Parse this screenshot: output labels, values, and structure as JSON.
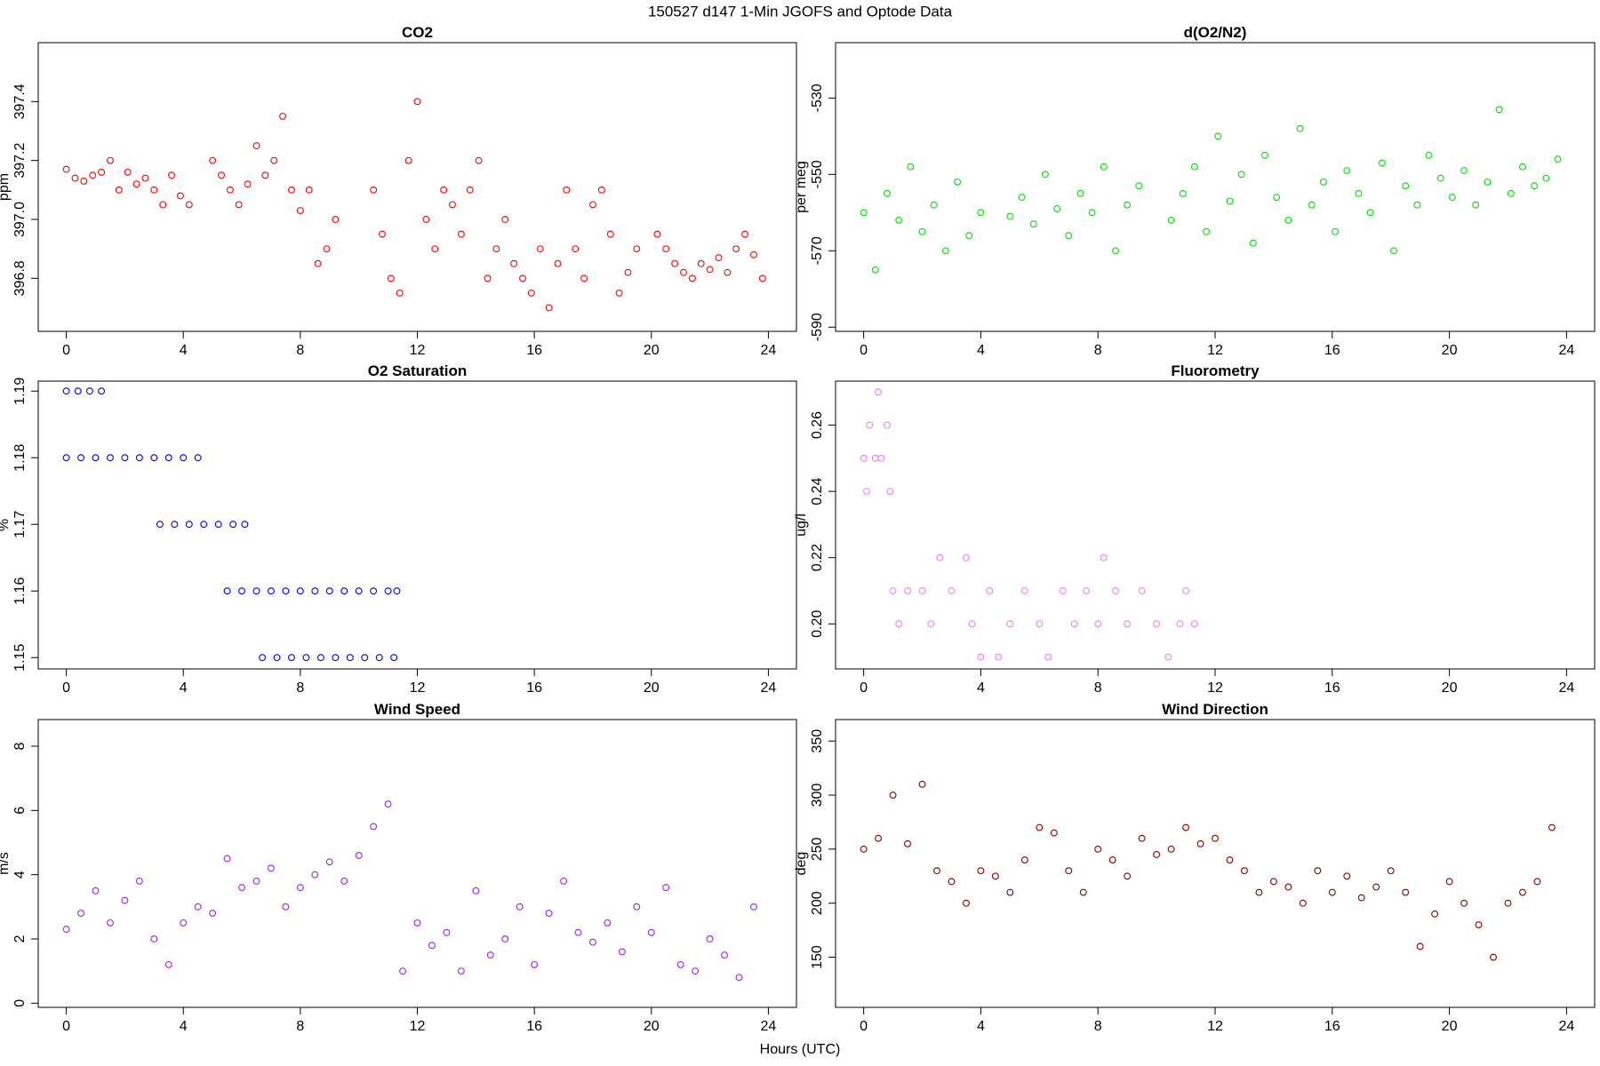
{
  "title": "150527   d147   1-Min  JGOFS and Optode Data",
  "xlabel": "Hours (UTC)",
  "chart_data": [
    {
      "type": "scatter",
      "title": "CO2",
      "ylabel": "ppm",
      "color": "#ff0000",
      "xlim": [
        -0.96,
        24.96
      ],
      "xticks": [
        0,
        4,
        8,
        12,
        16,
        20,
        24
      ],
      "ylim": [
        396.62,
        397.6
      ],
      "yticks": [
        396.8,
        {
          "value": 397.0,
          "label": "397.0"
        },
        397.2,
        397.4
      ],
      "x": [
        0,
        0.3,
        0.6,
        0.9,
        1.2,
        1.5,
        1.8,
        2.1,
        2.4,
        2.7,
        3.0,
        3.3,
        3.6,
        3.9,
        4.2,
        5.0,
        5.3,
        5.6,
        5.9,
        6.2,
        6.5,
        6.8,
        7.1,
        7.4,
        7.7,
        8.0,
        8.3,
        8.6,
        8.9,
        9.2,
        10.5,
        10.8,
        11.1,
        11.4,
        11.7,
        12.0,
        12.3,
        12.6,
        12.9,
        13.2,
        13.5,
        13.8,
        14.1,
        14.4,
        14.7,
        15.0,
        15.3,
        15.6,
        15.9,
        16.2,
        16.5,
        16.8,
        17.1,
        17.4,
        17.7,
        18.0,
        18.3,
        18.6,
        18.9,
        19.2,
        19.5,
        20.2,
        20.5,
        20.8,
        21.1,
        21.4,
        21.7,
        22.0,
        22.3,
        22.6,
        22.9,
        23.2,
        23.5,
        23.8
      ],
      "values": [
        397.17,
        397.14,
        397.13,
        397.15,
        397.16,
        397.2,
        397.1,
        397.16,
        397.12,
        397.14,
        397.1,
        397.05,
        397.15,
        397.08,
        397.05,
        397.2,
        397.15,
        397.1,
        397.05,
        397.12,
        397.25,
        397.15,
        397.2,
        397.35,
        397.1,
        397.03,
        397.1,
        396.85,
        396.9,
        397.0,
        397.1,
        396.95,
        396.8,
        396.75,
        397.2,
        397.4,
        397.0,
        396.9,
        397.1,
        397.05,
        396.95,
        397.1,
        397.2,
        396.8,
        396.9,
        397.0,
        396.85,
        396.8,
        396.75,
        396.9,
        396.7,
        396.85,
        397.1,
        396.9,
        396.8,
        397.05,
        397.1,
        396.95,
        396.75,
        396.82,
        396.9,
        396.95,
        396.9,
        396.85,
        396.82,
        396.8,
        396.85,
        396.83,
        396.87,
        396.82,
        396.9,
        396.95,
        396.88,
        396.8
      ]
    },
    {
      "type": "scatter",
      "title": "d(O2/N2)",
      "ylabel": "per meg",
      "color": "#00e000",
      "xlim": [
        -0.96,
        24.96
      ],
      "xticks": [
        0,
        4,
        8,
        12,
        16,
        20,
        24
      ],
      "ylim": [
        -591.1,
        -515.5
      ],
      "yticks": [
        -590,
        -570,
        -550,
        -530
      ],
      "x": [
        0,
        0.4,
        0.8,
        1.2,
        1.6,
        2.0,
        2.4,
        2.8,
        3.2,
        3.6,
        4.0,
        5.0,
        5.4,
        5.8,
        6.2,
        6.6,
        7.0,
        7.4,
        7.8,
        8.2,
        8.6,
        9.0,
        9.4,
        10.5,
        10.9,
        11.3,
        11.7,
        12.1,
        12.5,
        12.9,
        13.3,
        13.7,
        14.1,
        14.5,
        14.9,
        15.3,
        15.7,
        16.1,
        16.5,
        16.9,
        17.3,
        17.7,
        18.1,
        18.5,
        18.9,
        19.3,
        19.7,
        20.1,
        20.5,
        20.9,
        21.3,
        21.7,
        22.1,
        22.5,
        22.9,
        23.3,
        23.7
      ],
      "values": [
        -560,
        -575,
        -555,
        -562,
        -548,
        -565,
        -558,
        -570,
        -552,
        -566,
        -560,
        -561,
        -556,
        -563,
        -550,
        -559,
        -566,
        -555,
        -560,
        -548,
        -570,
        -558,
        -553,
        -562,
        -555,
        -548,
        -565,
        -540,
        -557,
        -550,
        -568,
        -545,
        -556,
        -562,
        -538,
        -558,
        -552,
        -565,
        -549,
        -555,
        -560,
        -547,
        -570,
        -553,
        -558,
        -545,
        -551,
        -556,
        -549,
        -558,
        -552,
        -533,
        -555,
        -548,
        -553,
        -551,
        -546
      ]
    },
    {
      "type": "scatter",
      "title": "O2 Saturation",
      "ylabel": "%",
      "color": "#0000ff",
      "xlim": [
        -0.96,
        24.96
      ],
      "xticks": [
        0,
        4,
        8,
        12,
        16,
        20,
        24
      ],
      "ylim": [
        1.1483,
        1.1915
      ],
      "yticks": [
        1.15,
        1.16,
        1.17,
        1.18,
        1.19
      ],
      "x": [
        0,
        0.4,
        0.8,
        1.2,
        0,
        0.5,
        1,
        1.5,
        2,
        2.5,
        3,
        3.5,
        4,
        4.5,
        3.2,
        3.7,
        4.2,
        4.7,
        5.2,
        5.7,
        6.1,
        5.5,
        6,
        6.5,
        7,
        7.5,
        8,
        8.5,
        9,
        9.5,
        10,
        10.5,
        11,
        11.3,
        6.7,
        7.2,
        7.7,
        8.2,
        8.7,
        9.2,
        9.7,
        10.2,
        10.7,
        11.2
      ],
      "values": [
        1.19,
        1.19,
        1.19,
        1.19,
        1.18,
        1.18,
        1.18,
        1.18,
        1.18,
        1.18,
        1.18,
        1.18,
        1.18,
        1.18,
        1.17,
        1.17,
        1.17,
        1.17,
        1.17,
        1.17,
        1.17,
        1.16,
        1.16,
        1.16,
        1.16,
        1.16,
        1.16,
        1.16,
        1.16,
        1.16,
        1.16,
        1.16,
        1.16,
        1.16,
        1.15,
        1.15,
        1.15,
        1.15,
        1.15,
        1.15,
        1.15,
        1.15,
        1.15,
        1.15
      ]
    },
    {
      "type": "scatter",
      "title": "Fluorometry",
      "ylabel": "ug/l",
      "color": "#ee82ee",
      "xlim": [
        -0.96,
        24.96
      ],
      "xticks": [
        0,
        4,
        8,
        12,
        16,
        20,
        24
      ],
      "ylim": [
        0.1864,
        0.2733
      ],
      "yticks": [
        {
          "value": 0.2,
          "label": "0.20"
        },
        0.22,
        0.24,
        0.26
      ],
      "x": [
        0,
        0.1,
        0.2,
        0.4,
        0.5,
        0.6,
        0.8,
        0.9,
        1.0,
        1.2,
        1.5,
        2.0,
        2.3,
        2.6,
        3.0,
        3.5,
        3.7,
        4.0,
        4.3,
        4.6,
        5.0,
        5.5,
        6.0,
        6.3,
        6.8,
        7.2,
        7.6,
        8.0,
        8.2,
        8.6,
        9.0,
        9.5,
        10.0,
        10.4,
        10.8,
        11.0,
        11.3
      ],
      "values": [
        0.25,
        0.24,
        0.26,
        0.25,
        0.27,
        0.25,
        0.26,
        0.24,
        0.21,
        0.2,
        0.21,
        0.21,
        0.2,
        0.22,
        0.21,
        0.22,
        0.2,
        0.19,
        0.21,
        0.19,
        0.2,
        0.21,
        0.2,
        0.19,
        0.21,
        0.2,
        0.21,
        0.2,
        0.22,
        0.21,
        0.2,
        0.21,
        0.2,
        0.19,
        0.2,
        0.21,
        0.2
      ]
    },
    {
      "type": "scatter",
      "title": "Wind Speed",
      "ylabel": "m/s",
      "color": "#a020f0",
      "xlim": [
        -0.96,
        24.96
      ],
      "xticks": [
        0,
        4,
        8,
        12,
        16,
        20,
        24
      ],
      "ylim": [
        -0.13,
        8.83
      ],
      "yticks": [
        0,
        2,
        4,
        6,
        8
      ],
      "x": [
        0,
        0.5,
        1,
        1.5,
        2,
        2.5,
        3,
        3.5,
        4,
        4.5,
        5,
        5.5,
        6,
        6.5,
        7,
        7.5,
        8,
        8.5,
        9,
        9.5,
        10,
        10.5,
        11,
        11.5,
        12,
        12.5,
        13,
        13.5,
        14,
        14.5,
        15,
        15.5,
        16,
        16.5,
        17,
        17.5,
        18,
        18.5,
        19,
        19.5,
        20,
        20.5,
        21,
        21.5,
        22,
        22.5,
        23,
        23.5
      ],
      "values": [
        2.3,
        2.8,
        3.5,
        2.5,
        3.2,
        3.8,
        2.0,
        1.2,
        2.5,
        3.0,
        2.8,
        4.5,
        3.6,
        3.8,
        4.2,
        3.0,
        3.6,
        4.0,
        4.4,
        3.8,
        4.6,
        5.5,
        6.2,
        1.0,
        2.5,
        1.8,
        2.2,
        1.0,
        3.5,
        1.5,
        2.0,
        3.0,
        1.2,
        2.8,
        3.8,
        2.2,
        1.9,
        2.5,
        1.6,
        3.0,
        2.2,
        3.6,
        1.2,
        1.0,
        2.0,
        1.5,
        0.8,
        3.0
      ]
    },
    {
      "type": "scatter",
      "title": "Wind Direction",
      "ylabel": "deg",
      "color": "#8b0000",
      "xlim": [
        -0.96,
        24.96
      ],
      "xticks": [
        0,
        4,
        8,
        12,
        16,
        20,
        24
      ],
      "ylim": [
        103.6,
        369.9
      ],
      "yticks": [
        150,
        200,
        250,
        300,
        350
      ],
      "x": [
        0,
        0.5,
        1,
        1.5,
        2,
        2.5,
        3,
        3.5,
        4,
        4.5,
        5,
        5.5,
        6,
        6.5,
        7,
        7.5,
        8,
        8.5,
        9,
        9.5,
        10,
        10.5,
        11,
        11.5,
        12,
        12.5,
        13,
        13.5,
        14,
        14.5,
        15,
        15.5,
        16,
        16.5,
        17,
        17.5,
        18,
        18.5,
        19,
        19.5,
        20,
        20.5,
        21,
        21.5,
        22,
        22.5,
        23,
        23.5
      ],
      "values": [
        250,
        260,
        300,
        255,
        310,
        230,
        220,
        200,
        230,
        225,
        210,
        240,
        270,
        265,
        230,
        210,
        250,
        240,
        225,
        260,
        245,
        250,
        270,
        255,
        260,
        240,
        230,
        210,
        220,
        215,
        200,
        230,
        210,
        225,
        205,
        215,
        230,
        210,
        160,
        190,
        220,
        200,
        180,
        150,
        200,
        210,
        220,
        270
      ]
    }
  ]
}
